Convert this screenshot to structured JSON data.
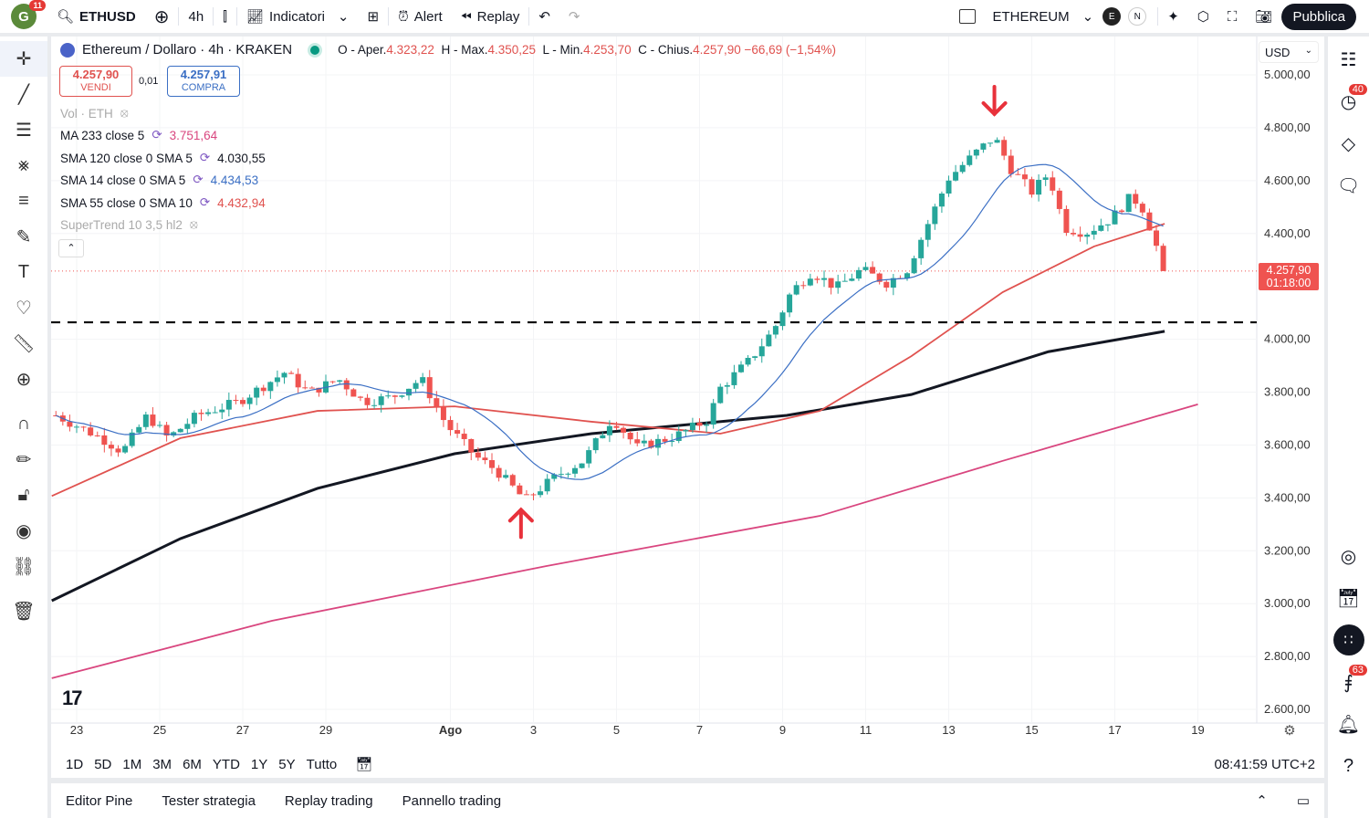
{
  "topbar": {
    "avatar_letter": "G",
    "avatar_badge": "11",
    "symbol": "ETHUSD",
    "interval": "4h",
    "indicators": "Indicatori",
    "alert": "Alert",
    "replay": "Replay",
    "chart_name": "ETHEREUM",
    "exchange_e": "E",
    "exchange_n": "N",
    "publish": "Pubblica"
  },
  "legend": {
    "title": "Ethereum / Dollaro · 4h · KRAKEN",
    "o_label": "O - Aper.",
    "o": "4.323,22",
    "h_label": "H - Max.",
    "h": "4.350,25",
    "l_label": "L - Min.",
    "l": "4.253,70",
    "c_label": "C - Chius.",
    "c": "4.257,90",
    "change": "−66,69 (−1,54%)"
  },
  "trade": {
    "sell_price": "4.257,90",
    "sell_label": "VENDI",
    "spread": "0,01",
    "buy_price": "4.257,91",
    "buy_label": "COMPRA"
  },
  "indicators": [
    {
      "label": "Vol · ETH",
      "value": ""
    },
    {
      "label": "MA 233 close 5",
      "value": "3.751,64",
      "color": "#d9467f"
    },
    {
      "label": "SMA 120 close 0 SMA 5",
      "value": "4.030,55",
      "color": "#131722"
    },
    {
      "label": "SMA 14 close 0 SMA 5",
      "value": "4.434,53",
      "color": "#3b6fc4"
    },
    {
      "label": "SMA 55 close 0 SMA 10",
      "value": "4.432,94",
      "color": "#e0524f"
    },
    {
      "label": "SuperTrend 10 3,5 hl2",
      "value": ""
    }
  ],
  "price_axis": {
    "currency": "USD",
    "ticks": [
      "5.000,00",
      "4.800,00",
      "4.600,00",
      "4.400,00",
      "4.000,00",
      "3.800,00",
      "3.600,00",
      "3.400,00",
      "3.200,00",
      "3.000,00",
      "2.800,00",
      "2.600,00"
    ],
    "last_price": "4.257,90",
    "countdown": "01:18:00"
  },
  "time_axis": {
    "ticks": [
      "23",
      "25",
      "27",
      "29",
      "Ago",
      "3",
      "5",
      "7",
      "9",
      "11",
      "13",
      "15",
      "17",
      "19"
    ]
  },
  "ranges": [
    "1D",
    "5D",
    "1M",
    "3M",
    "6M",
    "YTD",
    "1Y",
    "5Y",
    "Tutto"
  ],
  "clock": "08:41:59 UTC+2",
  "panels": [
    "Editor Pine",
    "Tester strategia",
    "Replay trading",
    "Pannello trading"
  ],
  "right_badges": {
    "alerts": "40",
    "notifications": "63"
  },
  "chart_data": {
    "type": "candlestick",
    "title": "Ethereum / Dollaro · 4h · KRAKEN",
    "x_unit": "day (July numbering, Aug 1 = 32)",
    "ylim": [
      2600,
      5000
    ],
    "close_path": [
      [
        22.5,
        3712
      ],
      [
        23.6,
        3626
      ],
      [
        24.1,
        3574
      ],
      [
        24.7,
        3712
      ],
      [
        25.2,
        3626
      ],
      [
        25.9,
        3712
      ],
      [
        26.9,
        3764
      ],
      [
        28.0,
        3874
      ],
      [
        28.6,
        3798
      ],
      [
        29.3,
        3850
      ],
      [
        29.9,
        3764
      ],
      [
        30.6,
        3781
      ],
      [
        31.3,
        3850
      ],
      [
        31.9,
        3677
      ],
      [
        32.6,
        3557
      ],
      [
        33.1,
        3505
      ],
      [
        33.8,
        3391
      ],
      [
        34.6,
        3488
      ],
      [
        35.2,
        3540
      ],
      [
        35.9,
        3702
      ],
      [
        36.5,
        3591
      ],
      [
        37.4,
        3632
      ],
      [
        38.2,
        3695
      ],
      [
        38.5,
        3816
      ],
      [
        39.2,
        3919
      ],
      [
        39.8,
        4040
      ],
      [
        40.2,
        4178
      ],
      [
        40.7,
        4254
      ],
      [
        41.3,
        4195
      ],
      [
        41.9,
        4264
      ],
      [
        42.5,
        4213
      ],
      [
        43.0,
        4264
      ],
      [
        43.6,
        4472
      ],
      [
        44.0,
        4610
      ],
      [
        44.7,
        4713
      ],
      [
        45.1,
        4765
      ],
      [
        45.5,
        4644
      ],
      [
        46.0,
        4558
      ],
      [
        46.4,
        4627
      ],
      [
        46.8,
        4420
      ],
      [
        47.3,
        4403
      ],
      [
        47.9,
        4455
      ],
      [
        48.4,
        4541
      ],
      [
        48.7,
        4489
      ],
      [
        49.0,
        4351
      ],
      [
        49.2,
        4258
      ]
    ],
    "sma120": [
      [
        22.4,
        3011
      ],
      [
        25.5,
        3246
      ],
      [
        28.8,
        3436
      ],
      [
        32.1,
        3567
      ],
      [
        35.4,
        3643
      ],
      [
        40.1,
        3712
      ],
      [
        43.1,
        3791
      ],
      [
        46.4,
        3953
      ],
      [
        49.2,
        4030
      ]
    ],
    "sma55": [
      [
        22.4,
        3407
      ],
      [
        25.5,
        3626
      ],
      [
        28.8,
        3729
      ],
      [
        32.1,
        3746
      ],
      [
        35.4,
        3688
      ],
      [
        38.5,
        3643
      ],
      [
        40.9,
        3729
      ],
      [
        43.1,
        3936
      ],
      [
        45.3,
        4178
      ],
      [
        47.5,
        4351
      ],
      [
        49.2,
        4437
      ]
    ],
    "ma233": [
      [
        22.4,
        2718
      ],
      [
        27.7,
        2935
      ],
      [
        34.3,
        3142
      ],
      [
        40.9,
        3332
      ],
      [
        45.3,
        3540
      ],
      [
        50.0,
        3754
      ]
    ],
    "horizontal_level": 4064,
    "last_price": 4257.9,
    "annotations": [
      {
        "type": "arrow-up",
        "day": 33.7,
        "price": 3300
      },
      {
        "type": "arrow-down",
        "day": 45.1,
        "price": 4900
      }
    ],
    "colors": {
      "up": "#26a69a",
      "down": "#ef5350",
      "sma14": "#3b6fc4",
      "sma55": "#e0524f",
      "sma120": "#131722",
      "ma233": "#d9467f",
      "arrow": "#e8313b"
    }
  }
}
